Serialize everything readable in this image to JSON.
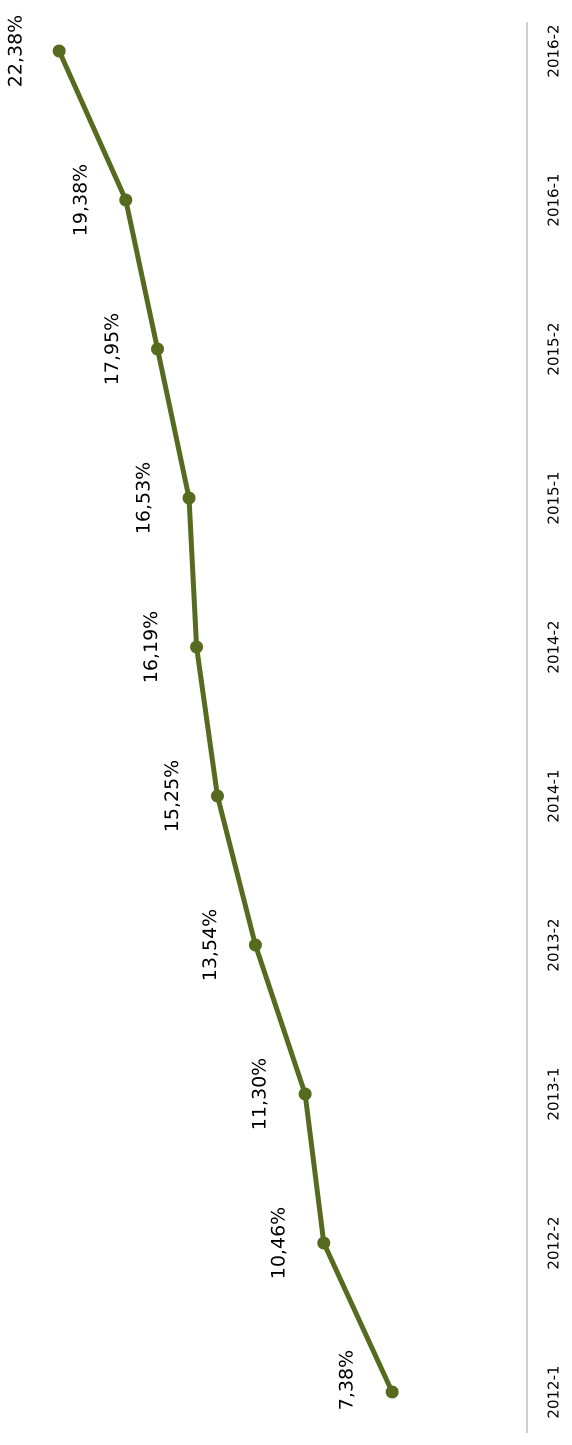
{
  "chart_data": {
    "type": "line",
    "orientation": "rotated-90-clockwise",
    "categories": [
      "2012-1",
      "2012-2",
      "2013-1",
      "2013-2",
      "2014-1",
      "2014-2",
      "2015-1",
      "2015-2",
      "2016-1",
      "2016-2"
    ],
    "series": [
      {
        "values": [
          7.38,
          10.46,
          11.3,
          13.54,
          15.25,
          16.19,
          16.53,
          17.95,
          19.38,
          22.38
        ],
        "labels": [
          "7,38%",
          "10,46%",
          "11,30%",
          "13,54%",
          "15,25%",
          "16,19%",
          "16,53%",
          "17,95%",
          "19,38%",
          "22,38%"
        ],
        "color": "#566b1f"
      }
    ],
    "title": "",
    "xlabel": "",
    "ylabel": "",
    "ylim": [
      0,
      25
    ],
    "grid": false,
    "legend": "none",
    "axis_color": "#bfbfbf"
  }
}
